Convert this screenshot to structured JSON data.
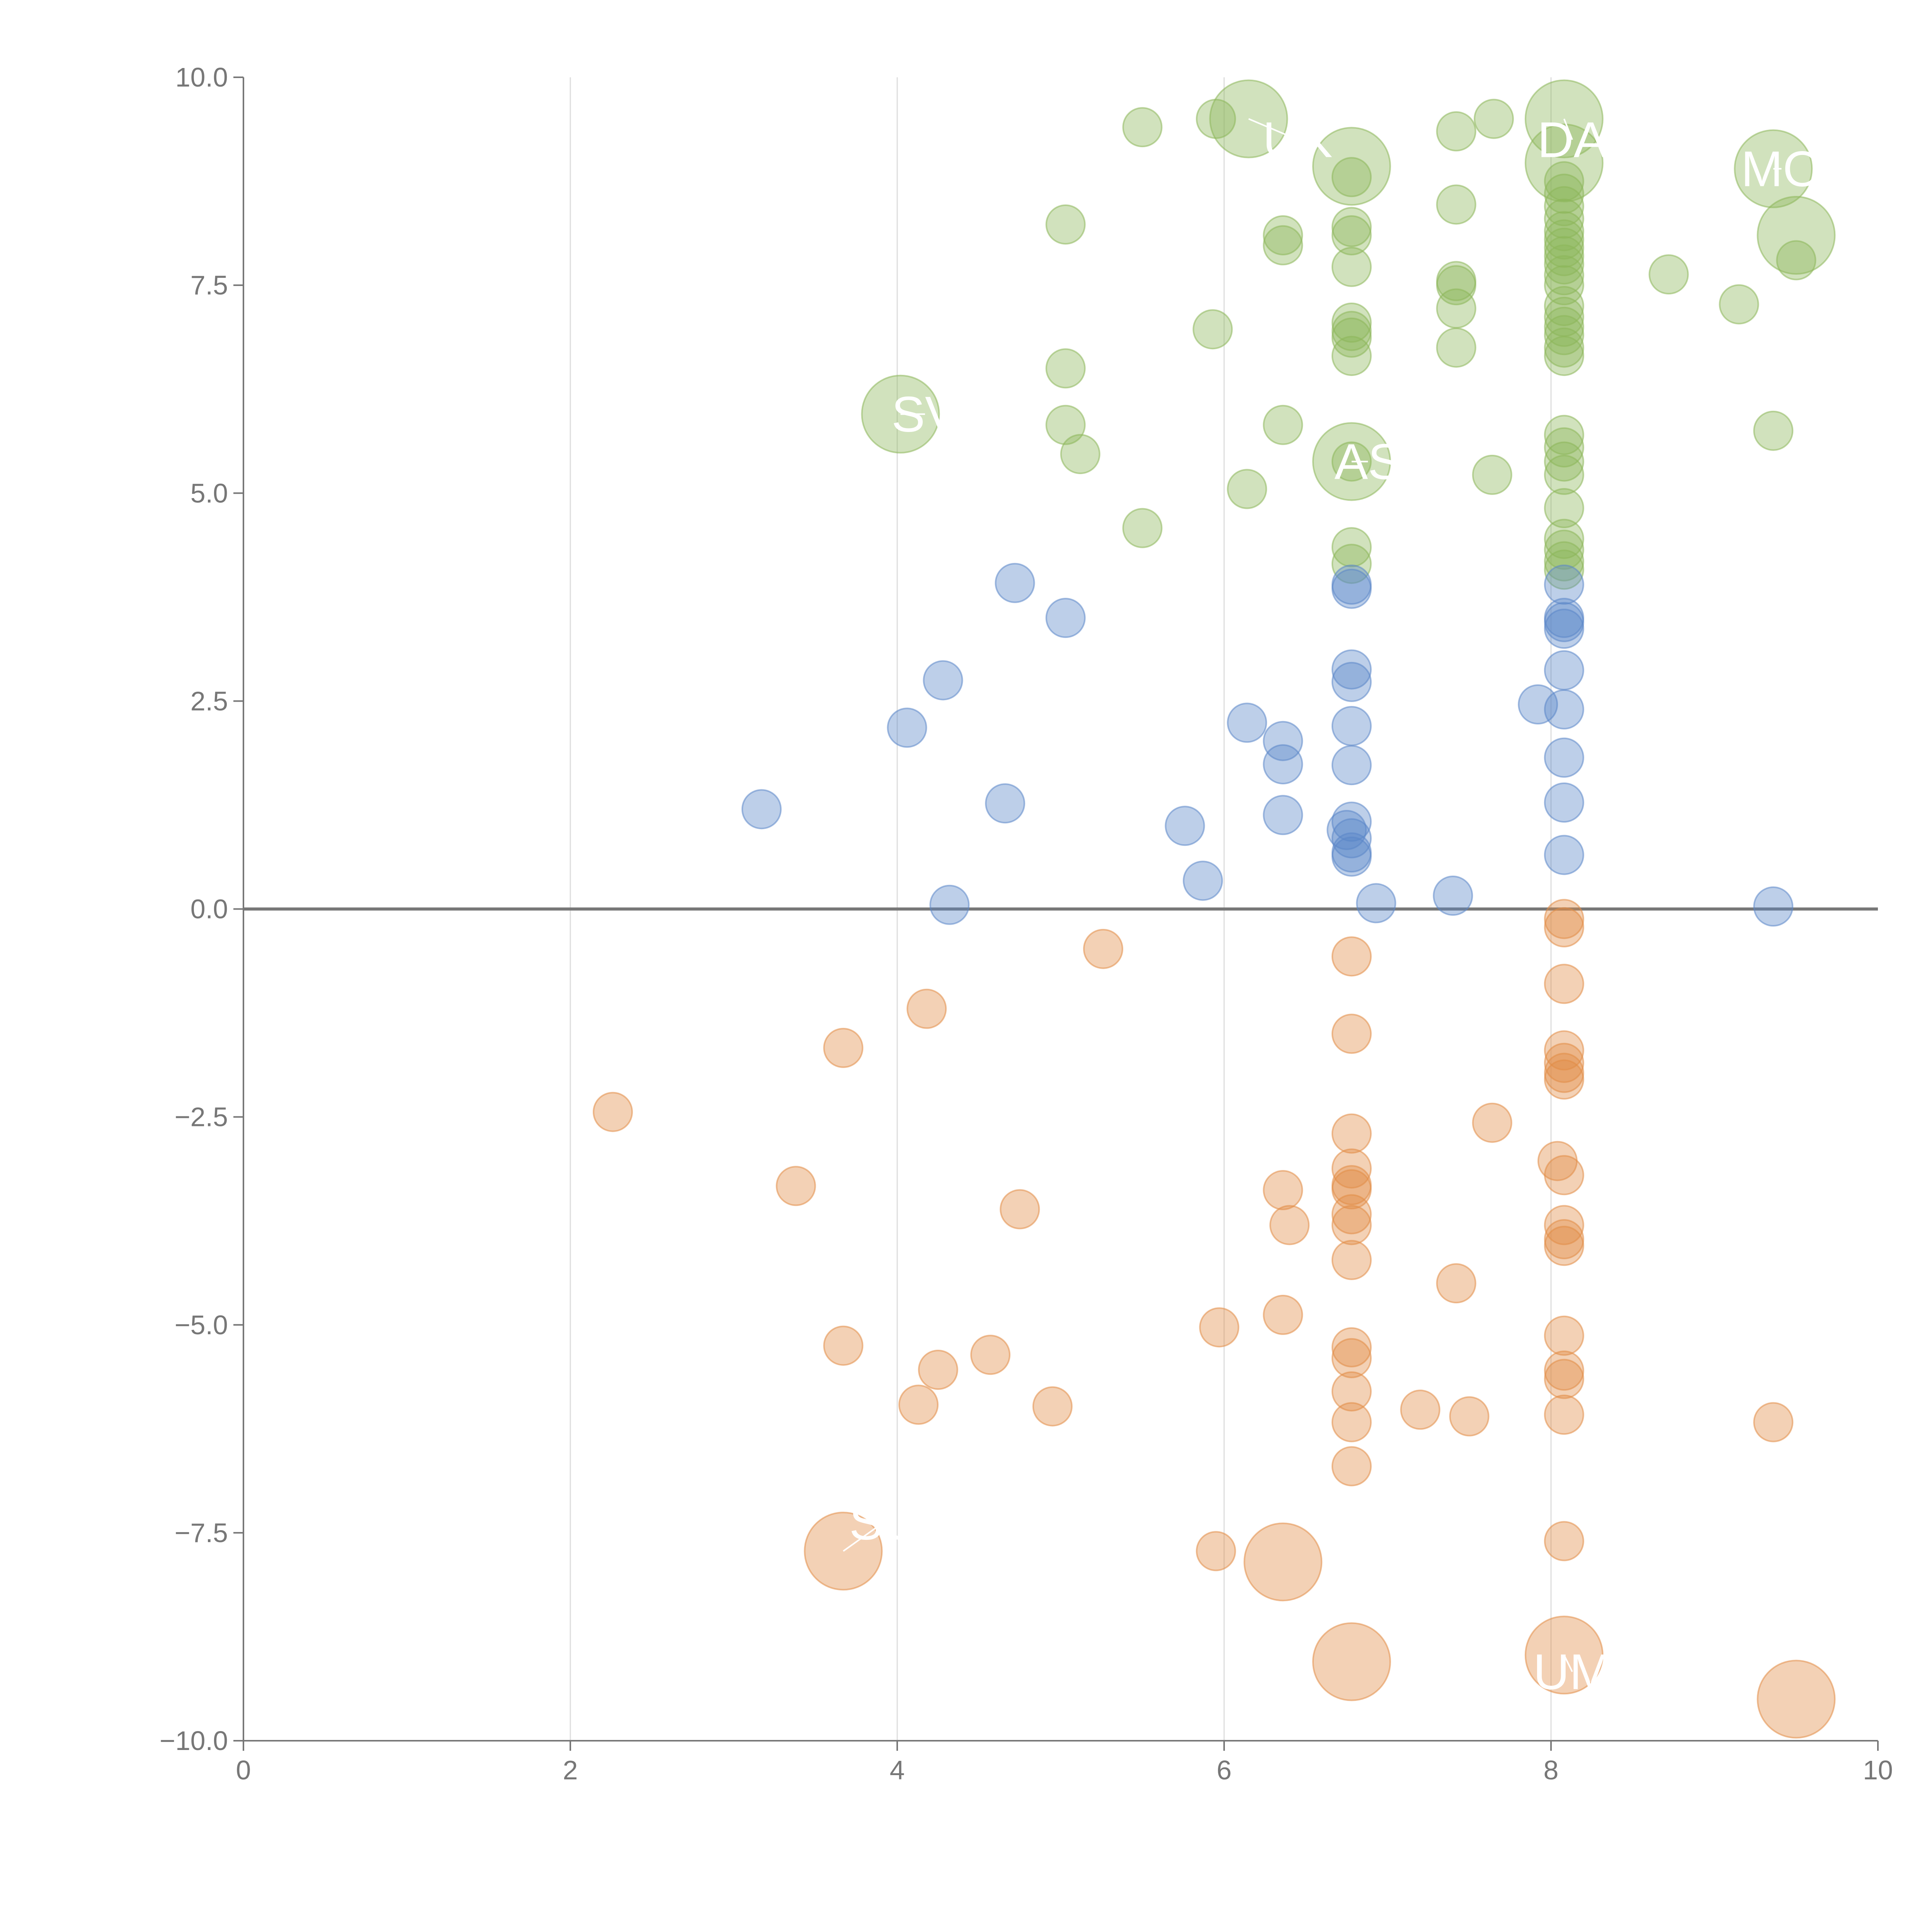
{
  "chart_data": {
    "type": "scatter",
    "title": "",
    "xlabel": "",
    "ylabel": "",
    "xlim": [
      0,
      10
    ],
    "ylim": [
      -10,
      10
    ],
    "grid": "vertical",
    "baseline": 0,
    "colors": {
      "positive": "#8db65a",
      "neutral": "#5b87c8",
      "negative": "#e28c45",
      "axis": "#777777",
      "grid": "#dddddd",
      "baseline": "#777777"
    },
    "x_ticks": [
      {
        "value": 0,
        "label": "0"
      },
      {
        "value": 2,
        "label": "2"
      },
      {
        "value": 4,
        "label": "4"
      },
      {
        "value": 6,
        "label": "6"
      },
      {
        "value": 8,
        "label": "8"
      },
      {
        "value": 10,
        "label": "10"
      }
    ],
    "y_ticks": [
      {
        "value": 10,
        "label": "10.0"
      },
      {
        "value": 7.5,
        "label": "7.5"
      },
      {
        "value": 5,
        "label": "5.0"
      },
      {
        "value": 2.5,
        "label": "2.5"
      },
      {
        "value": 0,
        "label": "0.0"
      },
      {
        "value": -2.5,
        "label": "−2.5"
      },
      {
        "value": -5,
        "label": "−5.0"
      },
      {
        "value": -7.5,
        "label": "−7.5"
      },
      {
        "value": -10,
        "label": "−10.0"
      }
    ],
    "series": [
      {
        "name": "positive",
        "color_key": "positive",
        "points": [
          {
            "x": 5.5,
            "y": 9.4
          },
          {
            "x": 5.95,
            "y": 9.5
          },
          {
            "x": 7.42,
            "y": 9.35
          },
          {
            "x": 7.65,
            "y": 9.5
          },
          {
            "x": 5.03,
            "y": 8.23
          },
          {
            "x": 6.36,
            "y": 8.1
          },
          {
            "x": 6.36,
            "y": 7.98
          },
          {
            "x": 6.78,
            "y": 8.8
          },
          {
            "x": 6.78,
            "y": 8.2
          },
          {
            "x": 6.78,
            "y": 8.1
          },
          {
            "x": 6.78,
            "y": 7.72
          },
          {
            "x": 7.42,
            "y": 8.47
          },
          {
            "x": 7.42,
            "y": 7.55
          },
          {
            "x": 7.42,
            "y": 7.5
          },
          {
            "x": 7.42,
            "y": 7.22
          },
          {
            "x": 5.93,
            "y": 6.97
          },
          {
            "x": 6.78,
            "y": 7.05
          },
          {
            "x": 6.78,
            "y": 6.95
          },
          {
            "x": 6.78,
            "y": 6.87
          },
          {
            "x": 6.78,
            "y": 6.65
          },
          {
            "x": 7.42,
            "y": 6.75
          },
          {
            "x": 5.03,
            "y": 6.5
          },
          {
            "x": 5.03,
            "y": 5.82
          },
          {
            "x": 5.12,
            "y": 5.47
          },
          {
            "x": 6.36,
            "y": 5.82
          },
          {
            "x": 6.78,
            "y": 5.38
          },
          {
            "x": 7.64,
            "y": 5.22
          },
          {
            "x": 6.14,
            "y": 5.05
          },
          {
            "x": 5.5,
            "y": 4.58
          },
          {
            "x": 6.78,
            "y": 4.35
          },
          {
            "x": 6.78,
            "y": 4.15
          },
          {
            "x": 8.08,
            "y": 8.75
          },
          {
            "x": 8.08,
            "y": 8.6
          },
          {
            "x": 8.08,
            "y": 8.45
          },
          {
            "x": 8.08,
            "y": 8.3
          },
          {
            "x": 8.08,
            "y": 8.15
          },
          {
            "x": 8.08,
            "y": 8.05
          },
          {
            "x": 8.08,
            "y": 7.95
          },
          {
            "x": 8.08,
            "y": 7.85
          },
          {
            "x": 8.08,
            "y": 7.75
          },
          {
            "x": 8.08,
            "y": 7.62
          },
          {
            "x": 8.08,
            "y": 7.5
          },
          {
            "x": 8.08,
            "y": 7.25
          },
          {
            "x": 8.08,
            "y": 7.12
          },
          {
            "x": 8.08,
            "y": 7.0
          },
          {
            "x": 8.08,
            "y": 6.9
          },
          {
            "x": 8.08,
            "y": 6.75
          },
          {
            "x": 8.08,
            "y": 6.65
          },
          {
            "x": 8.08,
            "y": 5.7
          },
          {
            "x": 8.08,
            "y": 5.55
          },
          {
            "x": 8.08,
            "y": 5.38
          },
          {
            "x": 8.08,
            "y": 5.22
          },
          {
            "x": 8.08,
            "y": 4.82
          },
          {
            "x": 8.08,
            "y": 4.45
          },
          {
            "x": 8.08,
            "y": 4.32
          },
          {
            "x": 8.08,
            "y": 4.18
          },
          {
            "x": 8.08,
            "y": 4.08
          },
          {
            "x": 8.72,
            "y": 7.63
          },
          {
            "x": 9.15,
            "y": 7.27
          },
          {
            "x": 9.36,
            "y": 5.75
          },
          {
            "x": 9.5,
            "y": 7.8
          }
        ]
      },
      {
        "name": "neutral",
        "color_key": "neutral",
        "points": [
          {
            "x": 4.72,
            "y": 3.92
          },
          {
            "x": 5.03,
            "y": 3.5
          },
          {
            "x": 4.28,
            "y": 2.75
          },
          {
            "x": 4.06,
            "y": 2.18
          },
          {
            "x": 3.17,
            "y": 1.2
          },
          {
            "x": 4.66,
            "y": 1.27
          },
          {
            "x": 4.32,
            "y": 0.05
          },
          {
            "x": 5.76,
            "y": 1.0
          },
          {
            "x": 5.87,
            "y": 0.34
          },
          {
            "x": 6.14,
            "y": 2.24
          },
          {
            "x": 6.36,
            "y": 2.02
          },
          {
            "x": 6.36,
            "y": 1.74
          },
          {
            "x": 6.36,
            "y": 1.13
          },
          {
            "x": 6.78,
            "y": 3.9
          },
          {
            "x": 6.78,
            "y": 3.85
          },
          {
            "x": 6.78,
            "y": 2.88
          },
          {
            "x": 6.78,
            "y": 2.73
          },
          {
            "x": 6.78,
            "y": 2.2
          },
          {
            "x": 6.78,
            "y": 1.73
          },
          {
            "x": 6.78,
            "y": 1.05
          },
          {
            "x": 6.75,
            "y": 0.95
          },
          {
            "x": 6.78,
            "y": 0.85
          },
          {
            "x": 6.78,
            "y": 0.68
          },
          {
            "x": 6.78,
            "y": 0.63
          },
          {
            "x": 6.93,
            "y": 0.07
          },
          {
            "x": 7.4,
            "y": 0.16
          },
          {
            "x": 7.92,
            "y": 2.46
          },
          {
            "x": 8.08,
            "y": 3.9
          },
          {
            "x": 8.08,
            "y": 3.5
          },
          {
            "x": 8.08,
            "y": 3.45
          },
          {
            "x": 8.08,
            "y": 3.37
          },
          {
            "x": 8.08,
            "y": 2.87
          },
          {
            "x": 8.08,
            "y": 2.4
          },
          {
            "x": 8.08,
            "y": 1.82
          },
          {
            "x": 8.08,
            "y": 1.28
          },
          {
            "x": 8.08,
            "y": 0.65
          },
          {
            "x": 9.36,
            "y": 0.03
          }
        ]
      },
      {
        "name": "negative",
        "color_key": "negative",
        "points": [
          {
            "x": 5.26,
            "y": -0.48
          },
          {
            "x": 4.18,
            "y": -1.2
          },
          {
            "x": 3.67,
            "y": -1.67
          },
          {
            "x": 2.26,
            "y": -2.44
          },
          {
            "x": 3.38,
            "y": -3.33
          },
          {
            "x": 4.75,
            "y": -3.61
          },
          {
            "x": 6.36,
            "y": -3.38
          },
          {
            "x": 6.4,
            "y": -3.8
          },
          {
            "x": 3.67,
            "y": -5.25
          },
          {
            "x": 4.25,
            "y": -5.54
          },
          {
            "x": 4.57,
            "y": -5.36
          },
          {
            "x": 4.13,
            "y": -5.96
          },
          {
            "x": 4.95,
            "y": -5.98
          },
          {
            "x": 5.97,
            "y": -5.03
          },
          {
            "x": 6.36,
            "y": -4.88
          },
          {
            "x": 5.95,
            "y": -7.72
          },
          {
            "x": 6.78,
            "y": -0.57
          },
          {
            "x": 6.78,
            "y": -1.5
          },
          {
            "x": 6.78,
            "y": -2.7
          },
          {
            "x": 6.78,
            "y": -3.12
          },
          {
            "x": 6.78,
            "y": -3.32
          },
          {
            "x": 6.78,
            "y": -3.37
          },
          {
            "x": 6.78,
            "y": -3.67
          },
          {
            "x": 6.78,
            "y": -3.8
          },
          {
            "x": 6.78,
            "y": -4.22
          },
          {
            "x": 6.78,
            "y": -5.27
          },
          {
            "x": 6.78,
            "y": -5.4
          },
          {
            "x": 6.78,
            "y": -5.8
          },
          {
            "x": 6.78,
            "y": -6.17
          },
          {
            "x": 6.78,
            "y": -6.7
          },
          {
            "x": 7.2,
            "y": -6.02
          },
          {
            "x": 7.5,
            "y": -6.1
          },
          {
            "x": 7.42,
            "y": -4.5
          },
          {
            "x": 7.64,
            "y": -2.57
          },
          {
            "x": 8.04,
            "y": -3.03
          },
          {
            "x": 8.08,
            "y": -0.12
          },
          {
            "x": 8.08,
            "y": -0.22
          },
          {
            "x": 8.08,
            "y": -0.9
          },
          {
            "x": 8.08,
            "y": -1.7
          },
          {
            "x": 8.08,
            "y": -1.85
          },
          {
            "x": 8.08,
            "y": -1.97
          },
          {
            "x": 8.08,
            "y": -2.05
          },
          {
            "x": 8.08,
            "y": -3.2
          },
          {
            "x": 8.08,
            "y": -3.8
          },
          {
            "x": 8.08,
            "y": -3.97
          },
          {
            "x": 8.08,
            "y": -4.05
          },
          {
            "x": 8.08,
            "y": -5.13
          },
          {
            "x": 8.08,
            "y": -5.55
          },
          {
            "x": 8.08,
            "y": -5.65
          },
          {
            "x": 8.08,
            "y": -6.08
          },
          {
            "x": 8.08,
            "y": -7.6
          },
          {
            "x": 9.36,
            "y": -6.17
          }
        ]
      }
    ],
    "highlighted": [
      {
        "label": "UK",
        "x": 6.15,
        "y": 9.5,
        "color_key": "positive",
        "label_dx": 0.3,
        "label_dy": -0.25
      },
      {
        "label": "DA",
        "x": 8.08,
        "y": 9.5,
        "color_key": "positive",
        "label_dx": 0.05,
        "label_dy": -0.25
      },
      {
        "label": "",
        "x": 6.78,
        "y": 8.93,
        "color_key": "positive",
        "label_dx": 0,
        "label_dy": 0
      },
      {
        "label": "",
        "x": 8.08,
        "y": 8.97,
        "color_key": "positive",
        "label_dx": 0,
        "label_dy": 0
      },
      {
        "label": "MO",
        "x": 9.36,
        "y": 8.9,
        "color_key": "positive",
        "label_dx": 0.05,
        "label_dy": 0
      },
      {
        "label": "",
        "x": 9.5,
        "y": 8.1,
        "color_key": "positive",
        "label_dx": 0,
        "label_dy": 0
      },
      {
        "label": "SV",
        "x": 4.02,
        "y": 5.95,
        "color_key": "positive",
        "label_dx": 0.15,
        "label_dy": 0
      },
      {
        "label": "AS",
        "x": 6.78,
        "y": 5.38,
        "color_key": "positive",
        "label_dx": 0.1,
        "label_dy": 0
      },
      {
        "label": "SU",
        "x": 3.67,
        "y": -7.72,
        "color_key": "negative",
        "label_dx": 0.25,
        "label_dy": 0.35
      },
      {
        "label": "",
        "x": 6.36,
        "y": -7.85,
        "color_key": "negative",
        "label_dx": 0,
        "label_dy": 0
      },
      {
        "label": "",
        "x": 6.78,
        "y": -9.05,
        "color_key": "negative",
        "label_dx": 0,
        "label_dy": 0
      },
      {
        "label": "UM",
        "x": 8.08,
        "y": -8.97,
        "color_key": "negative",
        "label_dx": 0.05,
        "label_dy": -0.2
      },
      {
        "label": "",
        "x": 9.5,
        "y": -9.5,
        "color_key": "negative",
        "label_dx": 0,
        "label_dy": 0
      }
    ]
  }
}
